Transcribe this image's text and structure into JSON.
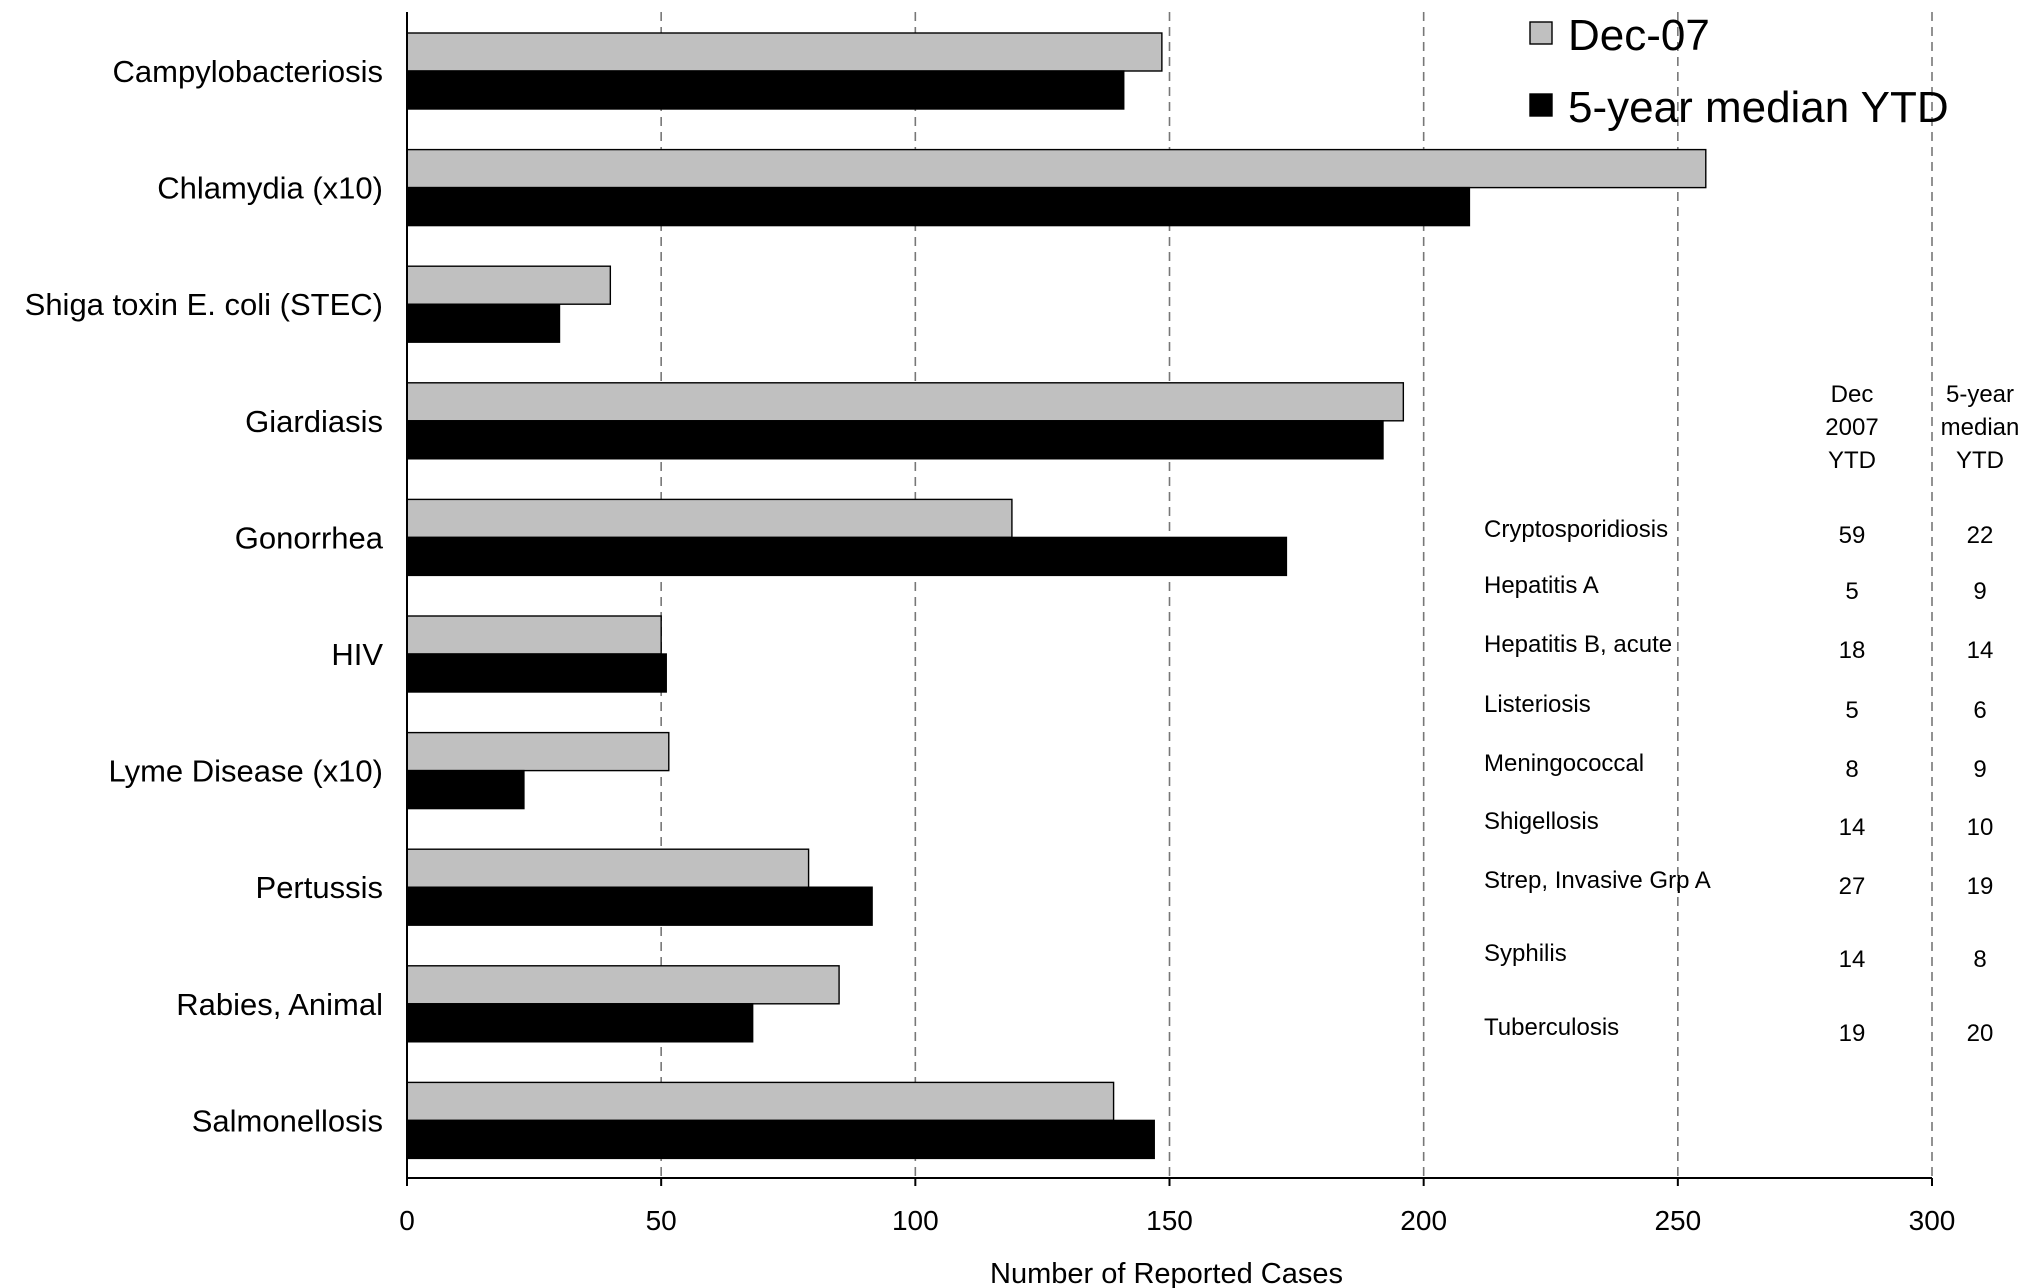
{
  "chart_data": {
    "type": "bar",
    "orientation": "horizontal",
    "categories": [
      "Campylobacteriosis",
      "Chlamydia (x10)",
      "Shiga toxin E. coli (STEC)",
      "Giardiasis",
      "Gonorrhea",
      "HIV",
      "Lyme Disease (x10)",
      "Pertussis",
      "Rabies, Animal",
      "Salmonellosis"
    ],
    "series": [
      {
        "name": "Dec-07",
        "color": "#c0c0c0",
        "values": [
          148.5,
          255.5,
          40,
          196,
          119,
          50,
          51.5,
          79,
          85,
          139
        ]
      },
      {
        "name": "5-year median YTD",
        "color": "#000000",
        "values": [
          141,
          209,
          30,
          192,
          173,
          51,
          23,
          91.5,
          68,
          147
        ]
      }
    ],
    "xlabel": "Number of Reported Cases",
    "ylabel": "",
    "xlim": [
      0,
      300
    ],
    "xticks": [
      "0",
      "50",
      "100",
      "150",
      "200",
      "250",
      "300"
    ],
    "grid": "vertical dashed",
    "legend_position": "top-right",
    "table": {
      "headers": [
        [
          "Dec",
          "2007",
          "YTD"
        ],
        [
          "5-year",
          "median",
          "YTD"
        ]
      ],
      "rows": [
        {
          "name": "Cryptosporidiosis",
          "dec": "59",
          "median": "22"
        },
        {
          "name": "Hepatitis A",
          "dec": "5",
          "median": "9"
        },
        {
          "name": "Hepatitis B, acute",
          "dec": "18",
          "median": "14"
        },
        {
          "name": "Listeriosis",
          "dec": "5",
          "median": "6"
        },
        {
          "name": "Meningococcal",
          "dec": "8",
          "median": "9"
        },
        {
          "name": "Shigellosis",
          "dec": "14",
          "median": "10"
        },
        {
          "name": "Strep, Invasive Grp A",
          "dec": "27",
          "median": "19"
        },
        {
          "name": "Syphilis",
          "dec": "14",
          "median": "8"
        },
        {
          "name": "Tuberculosis",
          "dec": "19",
          "median": "20"
        }
      ]
    }
  }
}
